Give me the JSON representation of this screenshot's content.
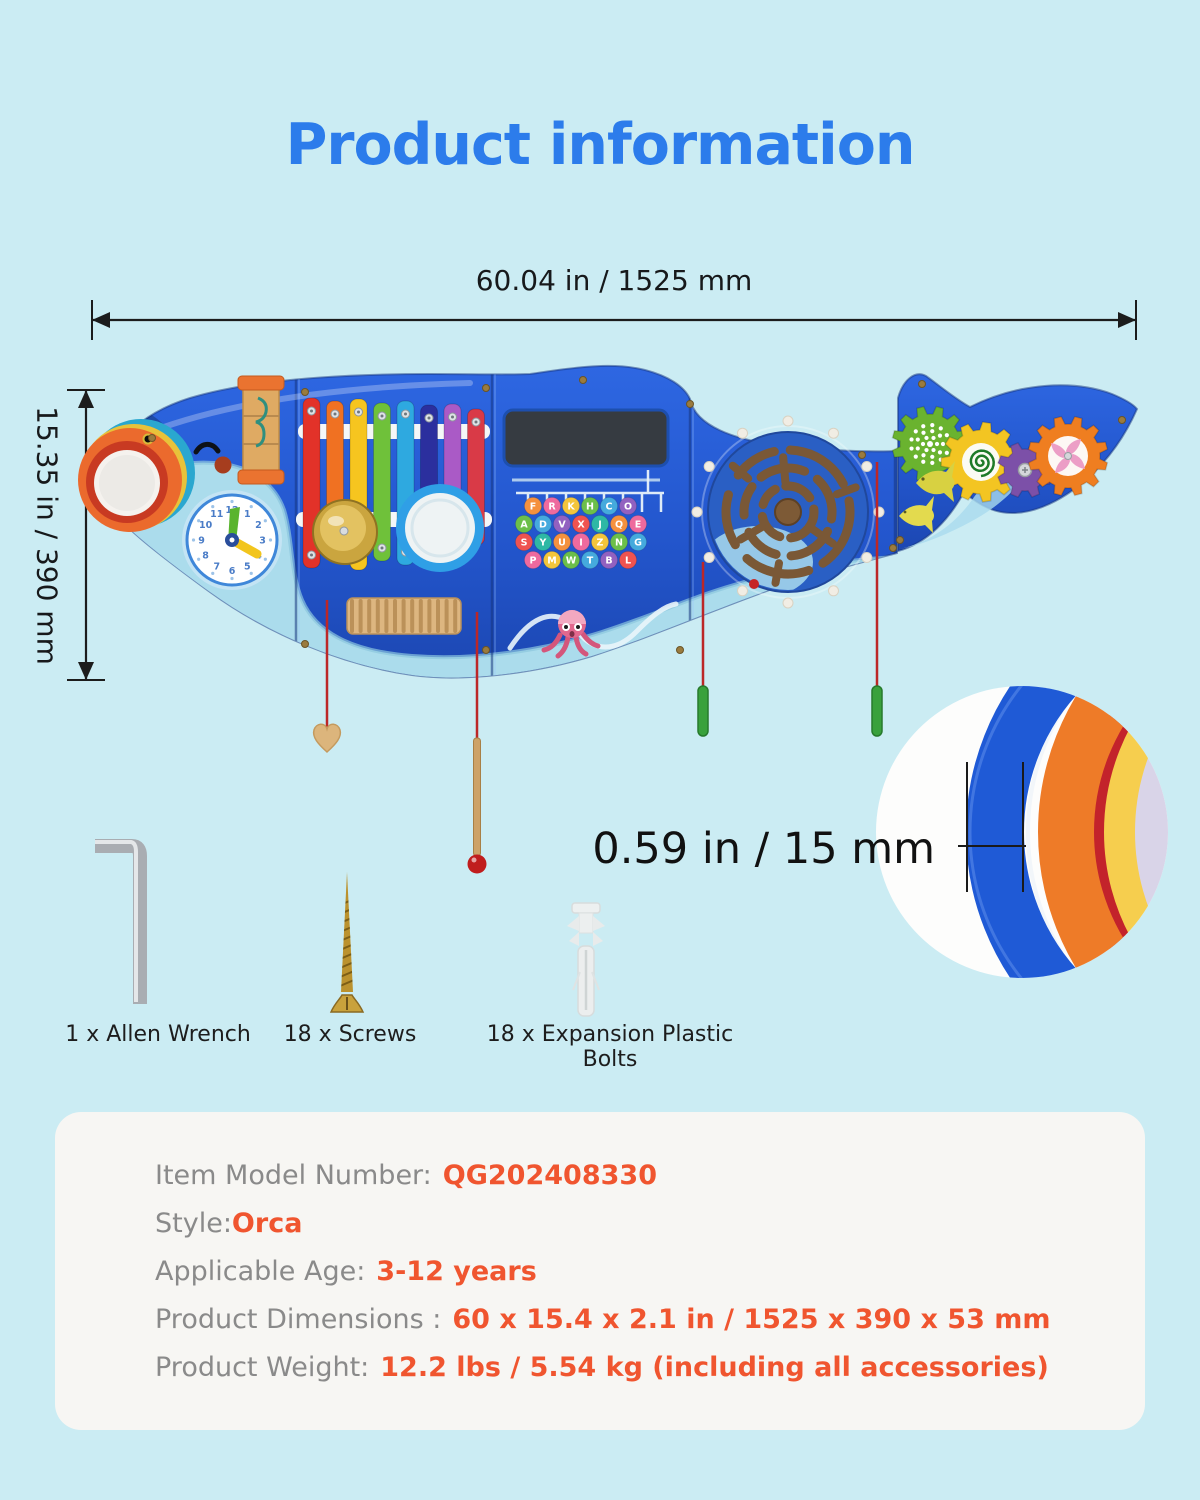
{
  "page": {
    "background_color": "#cbecf3"
  },
  "title": {
    "text": "Product information",
    "color": "#2c7ceb"
  },
  "dimension_annotations": {
    "width": "60.04 in / 1525 mm",
    "height": "15.35 in / 390 mm",
    "thickness": "0.59 in / 15 mm"
  },
  "board": {
    "style": "orca-shaped-wall-activity-board",
    "body_color": "#2356cd",
    "belly_color": "#abdcec",
    "clock": {
      "numbers": [
        "12",
        "1",
        "2",
        "3",
        "4",
        "5",
        "6",
        "7",
        "8",
        "9",
        "10",
        "11"
      ]
    },
    "xylophone": {
      "bar_colors": [
        "#e23229",
        "#f07122",
        "#f6c51f",
        "#6fc13a",
        "#2ea9e0",
        "#2b2f9e",
        "#aa5ac6",
        "#d93a47"
      ]
    },
    "beads": {
      "rows": [
        "FRKHCO",
        "ADVXJQE",
        "SYUIZNG",
        "PMWTBL"
      ],
      "palette": [
        "#f5913e",
        "#ee6a9e",
        "#f3c53b",
        "#6cbf4a",
        "#45aadd",
        "#9261c0",
        "#ef5350",
        "#2eb8a5"
      ]
    },
    "gears": [
      {
        "color": "#6ab32f",
        "inner": "dots"
      },
      {
        "color": "#f3c522",
        "inner": "spiral"
      },
      {
        "color": "#7c50a8",
        "inner": "screw"
      },
      {
        "color": "#ef7e20",
        "inner": "swirl"
      }
    ]
  },
  "accessories": [
    {
      "icon": "allen-wrench-icon",
      "label": "1 x Allen Wrench"
    },
    {
      "icon": "screw-icon",
      "label": "18 x Screws"
    },
    {
      "icon": "expansion-bolt-icon",
      "label": "18 x Expansion Plastic Bolts"
    }
  ],
  "info_card": {
    "background_color": "#f7f6f3",
    "label_color": "#8a8a8a",
    "value_color": "#f0552f",
    "rows": [
      {
        "label": "Item Model Number:",
        "value": "QG202408330",
        "spaced": true
      },
      {
        "label": "Style:",
        "value": "Orca",
        "spaced": false
      },
      {
        "label": "Applicable Age:",
        "value": "3-12 years",
        "spaced": true
      },
      {
        "label": "Product Dimensions :",
        "value": "60 x 15.4 x 2.1 in / 1525 x 390 x 53 mm",
        "spaced": true
      },
      {
        "label": "Product Weight:",
        "value": "12.2 lbs / 5.54 kg (including all accessories)",
        "spaced": true
      }
    ]
  }
}
